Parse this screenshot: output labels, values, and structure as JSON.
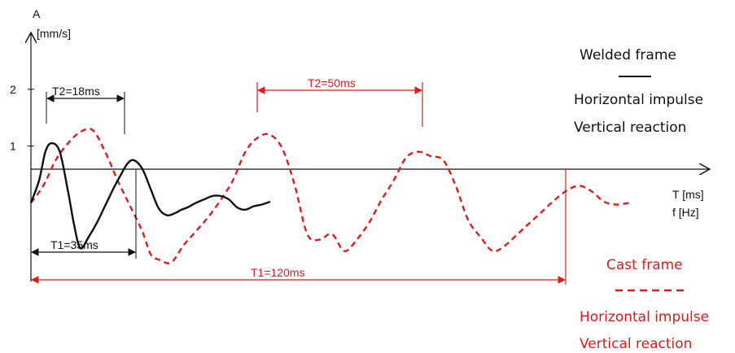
{
  "colors": {
    "axis": "#111111",
    "welded": "#111111",
    "cast": "#e41a1c"
  },
  "chart_data": {
    "type": "line",
    "title": "",
    "ylabel_line1": "A",
    "ylabel_line2": "[mm/s]",
    "xlabel_line1": "T [ms]",
    "xlabel_line2": "f [Hz]",
    "yticks": [
      {
        "value": 2,
        "label": "2"
      },
      {
        "value": 1,
        "label": "1"
      }
    ],
    "ylim": [
      -1.8,
      3.0
    ],
    "xlim": [
      0,
      150
    ],
    "legend": {
      "placement": "right",
      "welded_title": "Welded frame",
      "welded_line1": "Horizontal impulse",
      "welded_line2": "Vertical reaction",
      "cast_title": "Cast frame",
      "cast_line1": "Horizontal impulse",
      "cast_line2": "Vertical reaction"
    },
    "annotations": {
      "welded_t2": "T2=18ms",
      "welded_t1": "T1=35ms",
      "cast_t2": "T2=50ms",
      "cast_t1": "T1=120ms"
    },
    "series": [
      {
        "key": "welded",
        "style": "solid",
        "x": [
          0,
          2,
          3.5,
          5,
          7,
          9,
          10.5,
          12,
          14,
          16,
          18,
          20,
          22,
          23.5,
          25,
          27,
          29,
          31,
          33,
          35,
          36.5,
          38,
          40,
          42,
          44,
          46,
          48,
          50,
          52,
          54,
          56,
          58
        ],
        "y": [
          0,
          0.4,
          0.9,
          1.05,
          0.9,
          0.2,
          -0.4,
          -0.8,
          -0.6,
          -0.35,
          -0.05,
          0.25,
          0.52,
          0.7,
          0.75,
          0.6,
          0.25,
          -0.1,
          -0.22,
          -0.18,
          -0.12,
          -0.08,
          0.0,
          0.06,
          0.12,
          0.12,
          0.06,
          -0.08,
          -0.12,
          -0.06,
          -0.03,
          0.02
        ]
      },
      {
        "key": "cast",
        "style": "dashed",
        "x": [
          0,
          3,
          6,
          9,
          12,
          15,
          18,
          21,
          24,
          27,
          29,
          31,
          34,
          37,
          40,
          43,
          46,
          49,
          52,
          55,
          58,
          61,
          64,
          67,
          70,
          73,
          76,
          79,
          82,
          85,
          88,
          91,
          94,
          97,
          100,
          103,
          106,
          109,
          112,
          115,
          118,
          121,
          124,
          127,
          130,
          133,
          136,
          139,
          142,
          145
        ],
        "y": [
          0,
          0.3,
          0.75,
          1.05,
          1.25,
          1.28,
          0.9,
          0.4,
          -0.05,
          -0.5,
          -0.9,
          -1.0,
          -1.05,
          -0.75,
          -0.5,
          -0.25,
          0.05,
          0.4,
          0.9,
          1.15,
          1.2,
          0.95,
          0.3,
          -0.55,
          -0.65,
          -0.55,
          -0.85,
          -0.65,
          -0.35,
          0.05,
          0.4,
          0.8,
          0.9,
          0.82,
          0.75,
          0.3,
          -0.3,
          -0.6,
          -0.85,
          -0.75,
          -0.55,
          -0.35,
          -0.15,
          0.05,
          0.22,
          0.3,
          0.2,
          0.02,
          -0.03,
          0.0
        ]
      }
    ]
  }
}
